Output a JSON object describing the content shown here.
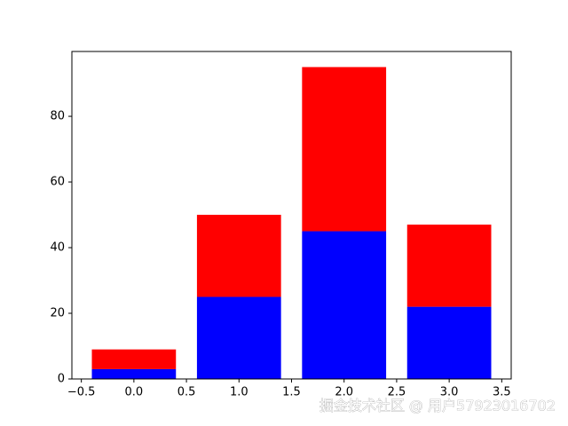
{
  "chart_data": {
    "type": "stacked_bar",
    "x": [
      0,
      1,
      2,
      3
    ],
    "series": [
      {
        "color": "#0000ff",
        "values": [
          3,
          25,
          45,
          22
        ]
      },
      {
        "color": "#ff0000",
        "values": [
          6,
          25,
          50,
          25
        ]
      }
    ],
    "xlim": [
      -0.59,
      3.59
    ],
    "xticks": [
      {
        "value": -0.5,
        "label": "−0.5"
      },
      {
        "value": 0,
        "label": "0.0"
      },
      0.5,
      {
        "value": 1,
        "label": "1.0"
      },
      1.5,
      {
        "value": 2,
        "label": "2.0"
      },
      2.5,
      {
        "value": 3,
        "label": "3.0"
      },
      3.5
    ],
    "ylim": [
      0,
      99.75
    ],
    "yticks": [
      0,
      20,
      40,
      60,
      80
    ],
    "grid": false,
    "annotation": "掘金技术社区 @ 用户57923016702"
  }
}
